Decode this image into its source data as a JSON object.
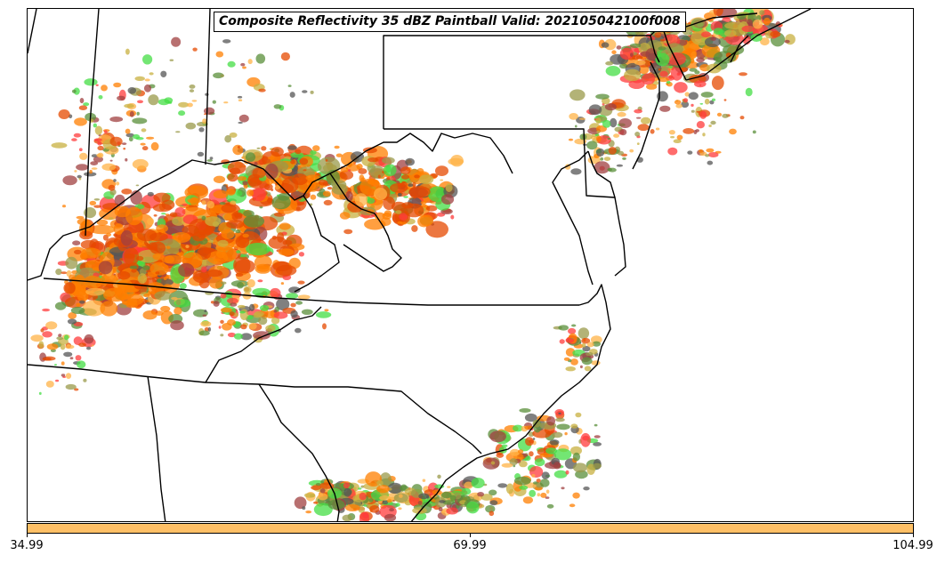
{
  "map": {
    "title": "Composite Reflectivity 35 dBZ Paintball Valid: 202105042100f008",
    "region": "Eastern United States (Mid-Atlantic / Southeast)",
    "ensemble_member_colors": [
      "#ff3b3b",
      "#ff7f00",
      "#e64a00",
      "#9a9a4a",
      "#5a8f3a",
      "#44dd44",
      "#a04040",
      "#555555",
      "#ffb347",
      "#c8b040"
    ],
    "borders_color": "#000000"
  },
  "colorbar": {
    "fill_color": "#ffc066",
    "ticks": [
      {
        "label": "34.99",
        "value": 34.99
      },
      {
        "label": "69.99",
        "value": 69.99
      },
      {
        "label": "104.99",
        "value": 104.99
      }
    ],
    "min": 34.99,
    "max": 104.99
  }
}
